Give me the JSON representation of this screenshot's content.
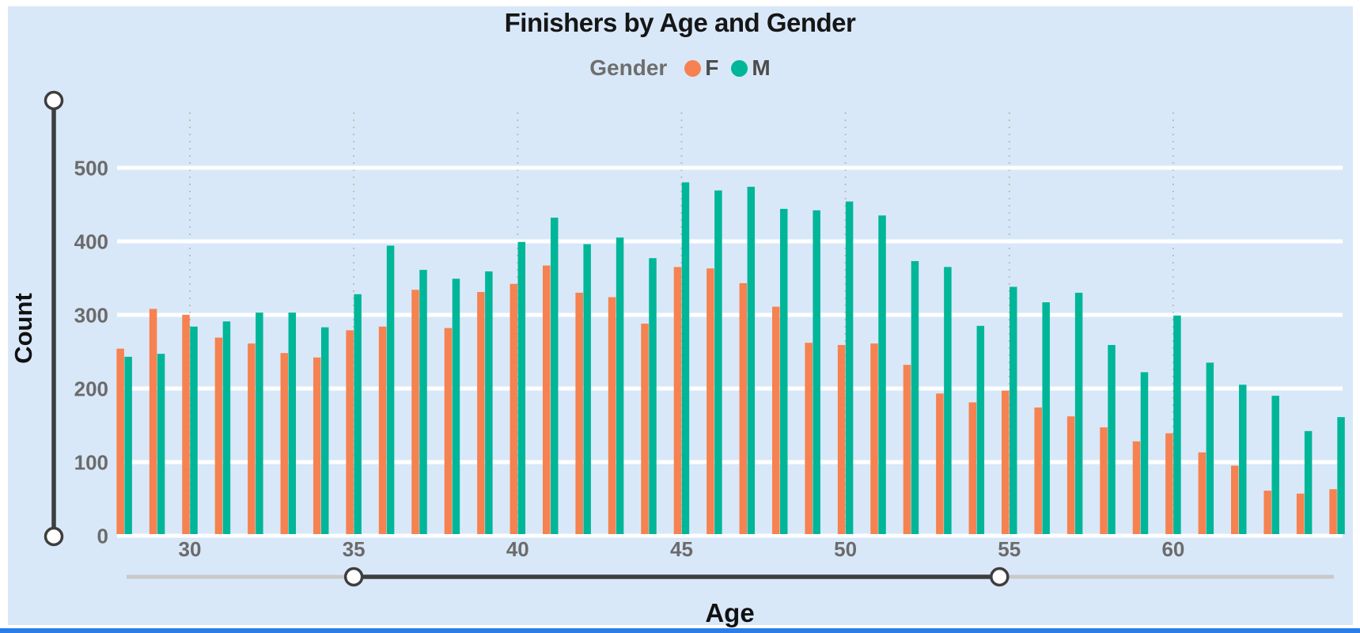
{
  "title": "Finishers by Age and Gender",
  "legend": {
    "title": "Gender",
    "items": [
      {
        "label": "F",
        "color": "#F58250"
      },
      {
        "label": "M",
        "color": "#00B698"
      }
    ]
  },
  "x_axis": {
    "title": "Age",
    "tick_labels": [
      30,
      35,
      40,
      45,
      50,
      55,
      60
    ]
  },
  "y_axis": {
    "title": "Count",
    "tick_labels": [
      0,
      100,
      200,
      300,
      400,
      500
    ]
  },
  "sliders": {
    "x_slider": {
      "orientation": "horizontal",
      "handle_ages": [
        35,
        54.7
      ]
    },
    "y_slider": {
      "orientation": "vertical",
      "handle_counts": [
        0,
        590
      ]
    }
  },
  "colors": {
    "background": "#D9E8F8",
    "bar_f": "#F58250",
    "bar_m": "#00B698",
    "gridline": "#FFFFFF",
    "dotted_gridline": "#BDBDBD",
    "tick_text": "#6B6B6B",
    "slider_dark": "#3E3E3E",
    "slider_light": "#C9C9C9",
    "handle_fill": "#FFFFFF",
    "bottom_strip": "#2B7DE9"
  },
  "chart_data": {
    "type": "bar",
    "title": "Finishers by Age and Gender",
    "xlabel": "Age",
    "ylabel": "Count",
    "ylim": [
      0,
      590
    ],
    "grid": true,
    "legend_position": "top",
    "categories": [
      28,
      29,
      30,
      31,
      32,
      33,
      34,
      35,
      36,
      37,
      38,
      39,
      40,
      41,
      42,
      43,
      44,
      45,
      46,
      47,
      48,
      49,
      50,
      51,
      52,
      53,
      54,
      55,
      56,
      57,
      58,
      59,
      60,
      61,
      62,
      63,
      64,
      65
    ],
    "series": [
      {
        "name": "F",
        "color": "#F58250",
        "values": [
          252,
          306,
          298,
          267,
          259,
          246,
          240,
          277,
          282,
          332,
          280,
          329,
          340,
          365,
          328,
          322,
          286,
          363,
          361,
          341,
          309,
          260,
          257,
          259,
          230,
          191,
          179,
          195,
          172,
          160,
          145,
          126,
          137,
          111,
          93,
          59,
          55,
          61
        ]
      },
      {
        "name": "M",
        "color": "#00B698",
        "values": [
          241,
          245,
          282,
          289,
          301,
          301,
          281,
          326,
          392,
          359,
          347,
          357,
          397,
          430,
          394,
          403,
          375,
          478,
          467,
          472,
          442,
          440,
          452,
          433,
          371,
          363,
          283,
          336,
          315,
          328,
          257,
          220,
          297,
          233,
          203,
          188,
          140,
          159
        ]
      }
    ]
  }
}
